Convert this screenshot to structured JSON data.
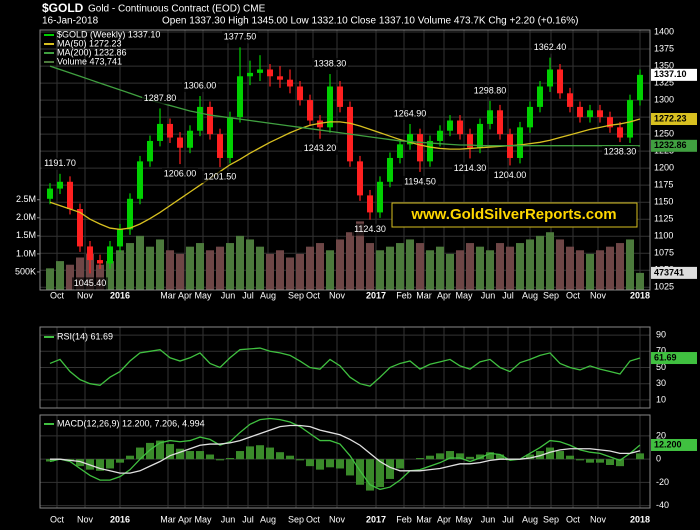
{
  "chart_data": {
    "type": "candlestick",
    "title": "$GOLD",
    "subtitle": "Gold - Continuous Contract (EOD) CME",
    "date": "16-Jan-2018",
    "quote": "Open 1337.30 High 1345.00 Low 1332.10 Close 1337.10 Volume 473.7K Chg +2.20 (+0.16%)",
    "watermark": "www.GoldSilverReports.com",
    "up_color": "#00d000",
    "down_color": "#ff2020",
    "xlim": [
      -1,
      60
    ],
    "xlabels": [
      {
        "value": 0.7,
        "label": "Oct"
      },
      {
        "value": 3.5,
        "label": "Nov"
      },
      {
        "value": 7,
        "label": "2016"
      },
      {
        "value": 11.8,
        "label": "Mar"
      },
      {
        "value": 13.5,
        "label": "Apr"
      },
      {
        "value": 15.3,
        "label": "May"
      },
      {
        "value": 17.8,
        "label": "Jun"
      },
      {
        "value": 19.8,
        "label": "Jul"
      },
      {
        "value": 21.8,
        "label": "Aug"
      },
      {
        "value": 24.6,
        "label": "Sep"
      },
      {
        "value": 26.3,
        "label": "Oct"
      },
      {
        "value": 28.7,
        "label": "Nov"
      },
      {
        "value": 32.6,
        "label": "2017"
      },
      {
        "value": 35.4,
        "label": "Feb"
      },
      {
        "value": 37.4,
        "label": "Mar"
      },
      {
        "value": 39.4,
        "label": "Apr"
      },
      {
        "value": 41.4,
        "label": "May"
      },
      {
        "value": 43.8,
        "label": "Jun"
      },
      {
        "value": 45.8,
        "label": "Jul"
      },
      {
        "value": 48,
        "label": "Aug"
      },
      {
        "value": 50.1,
        "label": "Sep"
      },
      {
        "value": 52.3,
        "label": "Oct"
      },
      {
        "value": 54.8,
        "label": "Nov"
      },
      {
        "value": 59,
        "label": "2018"
      }
    ],
    "ylim": [
      1021,
      1403
    ],
    "yticks": [
      1025,
      1050,
      1075,
      1100,
      1125,
      1150,
      1175,
      1200,
      1225,
      1250,
      1275,
      1300,
      1325,
      1350,
      1375,
      1400
    ],
    "price_name": "$GOLD (Weekly) 1337.10",
    "ohlc": [
      [
        1155,
        1178,
        1147,
        1170
      ],
      [
        1170,
        1191.7,
        1162,
        1180
      ],
      [
        1180,
        1188,
        1132,
        1140
      ],
      [
        1140,
        1148,
        1077,
        1085
      ],
      [
        1085,
        1093,
        1045.4,
        1065
      ],
      [
        1065,
        1073,
        1052,
        1060
      ],
      [
        1060,
        1093,
        1052,
        1085
      ],
      [
        1085,
        1118,
        1077,
        1110
      ],
      [
        1110,
        1163,
        1102,
        1155
      ],
      [
        1155,
        1218,
        1147,
        1210
      ],
      [
        1210,
        1248,
        1202,
        1240
      ],
      [
        1240,
        1287.8,
        1232,
        1265
      ],
      [
        1265,
        1273,
        1237,
        1245
      ],
      [
        1245,
        1253,
        1206,
        1230
      ],
      [
        1230,
        1263,
        1222,
        1255
      ],
      [
        1255,
        1306,
        1247,
        1290
      ],
      [
        1290,
        1298,
        1242,
        1250
      ],
      [
        1250,
        1258,
        1201.5,
        1215
      ],
      [
        1215,
        1283,
        1207,
        1275
      ],
      [
        1275,
        1377.5,
        1267,
        1335
      ],
      [
        1335,
        1358,
        1322,
        1340
      ],
      [
        1340,
        1366,
        1328,
        1345
      ],
      [
        1345,
        1353,
        1320,
        1335
      ],
      [
        1335,
        1350,
        1318,
        1330
      ],
      [
        1330,
        1345,
        1310,
        1320
      ],
      [
        1320,
        1328,
        1292,
        1300
      ],
      [
        1300,
        1308,
        1262,
        1270
      ],
      [
        1270,
        1278,
        1243.2,
        1260
      ],
      [
        1260,
        1338.3,
        1252,
        1320
      ],
      [
        1320,
        1328,
        1282,
        1290
      ],
      [
        1290,
        1298,
        1202,
        1210
      ],
      [
        1210,
        1218,
        1152,
        1160
      ],
      [
        1160,
        1168,
        1124.3,
        1135
      ],
      [
        1135,
        1188,
        1127,
        1180
      ],
      [
        1180,
        1223,
        1172,
        1215
      ],
      [
        1215,
        1243,
        1207,
        1235
      ],
      [
        1235,
        1264.9,
        1227,
        1250
      ],
      [
        1250,
        1258,
        1194.5,
        1210
      ],
      [
        1210,
        1248,
        1202,
        1240
      ],
      [
        1240,
        1263,
        1232,
        1255
      ],
      [
        1255,
        1278,
        1247,
        1270
      ],
      [
        1270,
        1278,
        1242,
        1250
      ],
      [
        1250,
        1258,
        1214.3,
        1230
      ],
      [
        1230,
        1273,
        1222,
        1265
      ],
      [
        1265,
        1298.8,
        1257,
        1285
      ],
      [
        1285,
        1293,
        1242,
        1250
      ],
      [
        1250,
        1258,
        1204,
        1215
      ],
      [
        1215,
        1268,
        1207,
        1260
      ],
      [
        1260,
        1298,
        1252,
        1290
      ],
      [
        1290,
        1328,
        1282,
        1320
      ],
      [
        1320,
        1362.4,
        1312,
        1345
      ],
      [
        1345,
        1353,
        1302,
        1310
      ],
      [
        1310,
        1318,
        1282,
        1290
      ],
      [
        1290,
        1298,
        1267,
        1275
      ],
      [
        1275,
        1293,
        1267,
        1285
      ],
      [
        1285,
        1293,
        1267,
        1275
      ],
      [
        1275,
        1283,
        1252,
        1260
      ],
      [
        1260,
        1268,
        1238.3,
        1245
      ],
      [
        1245,
        1308,
        1237,
        1300
      ],
      [
        1300,
        1345,
        1292,
        1337.1
      ]
    ],
    "annotations": [
      {
        "x": 1,
        "value": 1191.7,
        "label": "1191.70"
      },
      {
        "x": 4,
        "value": 1045.4,
        "label": "1045.40"
      },
      {
        "x": 11,
        "value": 1287.8,
        "label": "1287.80"
      },
      {
        "x": 13,
        "value": 1206,
        "label": "1206.00"
      },
      {
        "x": 15,
        "value": 1306,
        "label": "1306.00"
      },
      {
        "x": 17,
        "value": 1201.5,
        "label": "1201.50"
      },
      {
        "x": 19,
        "value": 1377.5,
        "label": "1377.50"
      },
      {
        "x": 27,
        "value": 1243.2,
        "label": "1243.20"
      },
      {
        "x": 28,
        "value": 1338.3,
        "label": "1338.30"
      },
      {
        "x": 32,
        "value": 1124.3,
        "label": "1124.30"
      },
      {
        "x": 36,
        "value": 1264.9,
        "label": "1264.90"
      },
      {
        "x": 37,
        "value": 1194.5,
        "label": "1194.50"
      },
      {
        "x": 42,
        "value": 1214.3,
        "label": "1214.30"
      },
      {
        "x": 44,
        "value": 1298.8,
        "label": "1298.80"
      },
      {
        "x": 46,
        "value": 1204,
        "label": "1204.00"
      },
      {
        "x": 50,
        "value": 1362.4,
        "label": "1362.40"
      },
      {
        "x": 57,
        "value": 1238.3,
        "label": "1238.30"
      }
    ],
    "series": [
      {
        "name": "MA(50) 1272.23",
        "color": "#d8c020",
        "tag": {
          "value": 1272.23,
          "label": "1272.23"
        },
        "values": [
          1150,
          1145,
          1140,
          1135,
          1125,
          1118,
          1112,
          1110,
          1112,
          1118,
          1126,
          1135,
          1145,
          1155,
          1165,
          1175,
          1185,
          1195,
          1205,
          1213,
          1222,
          1230,
          1238,
          1245,
          1252,
          1258,
          1263,
          1266,
          1268,
          1268,
          1266,
          1262,
          1257,
          1252,
          1247,
          1242,
          1238,
          1234,
          1231,
          1229,
          1228,
          1228,
          1229,
          1230,
          1231,
          1232,
          1233,
          1234,
          1236,
          1238,
          1241,
          1245,
          1249,
          1253,
          1257,
          1260,
          1263,
          1265,
          1268,
          1272.23
        ]
      },
      {
        "name": "MA(200) 1232.86",
        "color": "#40a040",
        "tag": {
          "value": 1232.86,
          "label": "1232.86"
        },
        "values": [
          1350,
          1345,
          1340,
          1335,
          1330,
          1325,
          1320,
          1315,
          1310,
          1305,
          1300,
          1296,
          1292,
          1288,
          1284,
          1281,
          1278,
          1276,
          1274,
          1272,
          1270,
          1268,
          1266,
          1264,
          1262,
          1260,
          1258,
          1256,
          1254,
          1252,
          1250,
          1248,
          1246,
          1244,
          1242,
          1240,
          1239,
          1238,
          1237,
          1236,
          1235,
          1234,
          1234,
          1233,
          1233,
          1233,
          1233,
          1233,
          1233,
          1233,
          1233,
          1233,
          1233,
          1233,
          1233,
          1233,
          1233,
          1233,
          1233,
          1232.86
        ]
      }
    ],
    "price_tag": {
      "value": 1337.1,
      "label": "1337.10"
    },
    "volume": {
      "name": "Volume 473,741",
      "up_color": "#4c7a3c",
      "down_color": "#6e4646",
      "vlim": [
        0,
        3600000
      ],
      "vticks": [
        {
          "value": 2500000,
          "label": "2.5M"
        },
        {
          "value": 2000000,
          "label": "2.0M"
        },
        {
          "value": 1500000,
          "label": "1.5M"
        },
        {
          "value": 1000000,
          "label": "1.0M"
        },
        {
          "value": 500000,
          "label": "500K"
        }
      ],
      "tag": {
        "value": 473741,
        "label": "473741"
      },
      "values": [
        600000,
        800000,
        700000,
        900000,
        1000000,
        700000,
        800000,
        1100000,
        1300000,
        1500000,
        1200000,
        1400000,
        1100000,
        1000000,
        1200000,
        1300000,
        1100000,
        1200000,
        1300000,
        1500000,
        1400000,
        1200000,
        1000000,
        1100000,
        900000,
        1000000,
        1200000,
        1300000,
        1100000,
        1400000,
        1600000,
        1900000,
        1300000,
        1100000,
        1200000,
        1300000,
        1400000,
        1300000,
        1100000,
        1200000,
        1000000,
        1100000,
        1300000,
        1200000,
        1100000,
        1300000,
        1200000,
        1300000,
        1400000,
        1500000,
        1600000,
        1400000,
        1200000,
        1100000,
        1000000,
        1100000,
        1200000,
        1300000,
        1400000,
        473741
      ]
    },
    "rsi": {
      "name": "RSI(14) 61.69",
      "color": "#40c040",
      "ylim": [
        0,
        100
      ],
      "yticks": [
        90,
        70,
        50,
        30,
        10
      ],
      "tag": {
        "value": 61.69,
        "label": "61.69"
      },
      "values": [
        55,
        60,
        45,
        35,
        30,
        28,
        38,
        45,
        58,
        68,
        70,
        72,
        62,
        58,
        62,
        68,
        55,
        50,
        62,
        72,
        73,
        74,
        70,
        68,
        65,
        58,
        50,
        48,
        60,
        52,
        38,
        30,
        27,
        38,
        50,
        55,
        58,
        48,
        54,
        57,
        60,
        52,
        48,
        57,
        60,
        50,
        45,
        56,
        60,
        65,
        68,
        55,
        50,
        47,
        52,
        48,
        45,
        42,
        58,
        61.69
      ]
    },
    "macd": {
      "name": "MACD(12,26,9) 12.200, 7.206, 4.994",
      "ylim": [
        -42,
        38
      ],
      "yticks": [
        20,
        0,
        -20,
        -40
      ],
      "tag": {
        "value": 12.2,
        "label": "12.200"
      },
      "macd_color": "#40c040",
      "signal_color": "#e0e0e0",
      "hist_color": "#3a8a2a",
      "macd": [
        -2,
        0,
        -2,
        -8,
        -14,
        -18,
        -18,
        -15,
        -9,
        0,
        8,
        14,
        16,
        15,
        16,
        19,
        17,
        12,
        15,
        23,
        30,
        34,
        35,
        34,
        32,
        28,
        22,
        16,
        16,
        13,
        3,
        -10,
        -22,
        -26,
        -24,
        -18,
        -10,
        -9,
        -6,
        -3,
        1,
        1,
        -2,
        1,
        5,
        4,
        -1,
        0,
        5,
        10,
        16,
        15,
        12,
        8,
        6,
        5,
        2,
        -1,
        5,
        12.2
      ],
      "signal": [
        0,
        0,
        -1,
        -2,
        -5,
        -8,
        -10,
        -12,
        -12,
        -10,
        -6,
        -2,
        3,
        6,
        9,
        12,
        13,
        13,
        14,
        16,
        19,
        22,
        25,
        28,
        29,
        29,
        28,
        25,
        23,
        21,
        17,
        12,
        5,
        -2,
        -7,
        -10,
        -10,
        -10,
        -9,
        -8,
        -6,
        -4,
        -4,
        -3,
        -1,
        0,
        0,
        0,
        1,
        3,
        6,
        8,
        9,
        9,
        9,
        8,
        7,
        5,
        5,
        7.206
      ],
      "hist": [
        -2,
        0,
        -1,
        -6,
        -9,
        -10,
        -8,
        -3,
        3,
        10,
        14,
        16,
        13,
        9,
        7,
        7,
        4,
        -1,
        1,
        7,
        11,
        12,
        10,
        6,
        3,
        -1,
        -6,
        -9,
        -7,
        -8,
        -14,
        -22,
        -27,
        -24,
        -17,
        -8,
        0,
        1,
        3,
        5,
        7,
        5,
        2,
        4,
        6,
        4,
        -1,
        0,
        4,
        7,
        10,
        7,
        3,
        -1,
        -3,
        -3,
        -5,
        -6,
        0,
        4.994
      ]
    }
  }
}
